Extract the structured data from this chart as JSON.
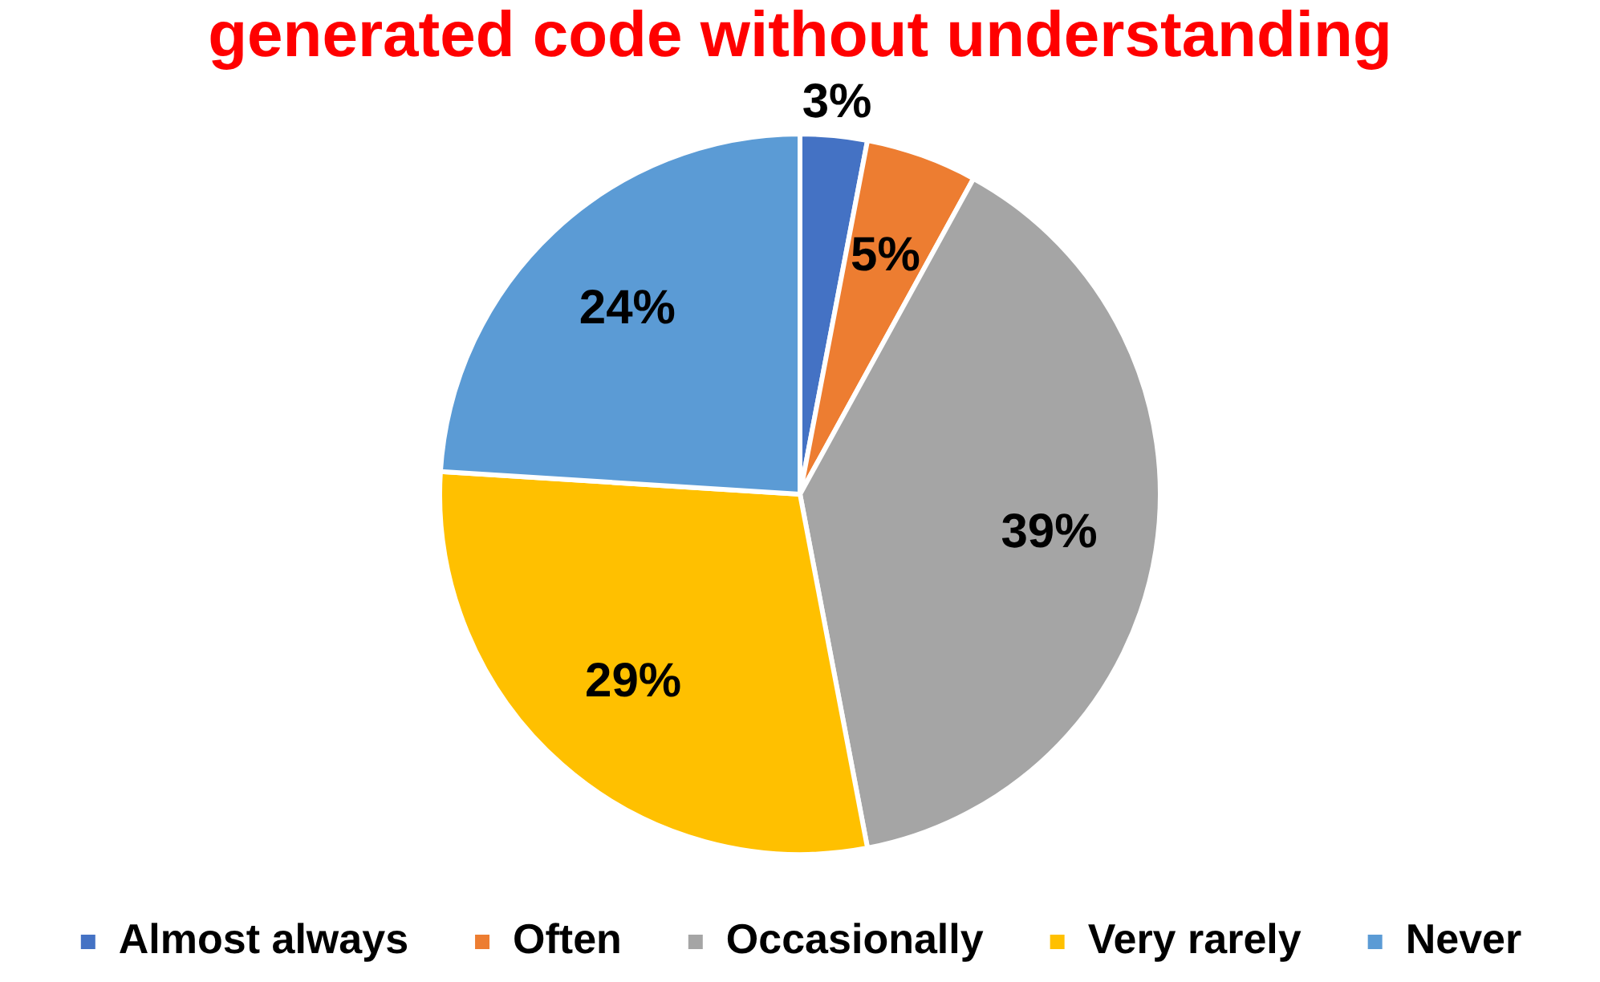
{
  "chart_data": {
    "type": "pie",
    "title": "generated code without understanding",
    "categories": [
      "Almost always",
      "Often",
      "Occasionally",
      "Very rarely",
      "Never"
    ],
    "values": [
      3,
      5,
      39,
      29,
      24
    ],
    "colors": [
      "#4472c4",
      "#ed7d31",
      "#a5a5a5",
      "#ffc000",
      "#5b9bd5"
    ],
    "value_labels": [
      "3%",
      "5%",
      "39%",
      "29%",
      "24%"
    ],
    "legend": "bottom"
  }
}
